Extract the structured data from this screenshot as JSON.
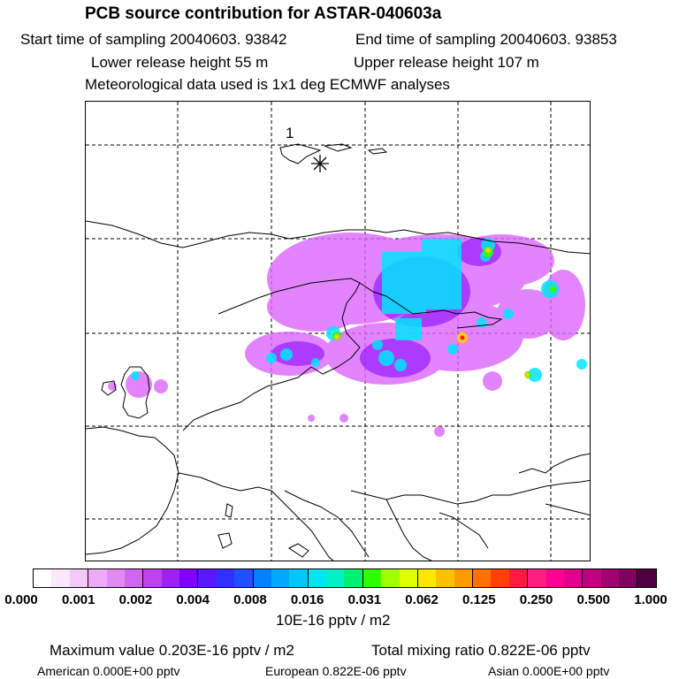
{
  "header": {
    "title": "PCB source contribution for ASTAR-040603a",
    "start_time": "Start time of sampling 20040603. 93842",
    "end_time": "End time of sampling 20040603. 93853",
    "lower_height": "Lower release height   55 m",
    "upper_height": "Upper release height  107 m",
    "meteo": "Meteorological data used is 1x1 deg ECMWF analyses"
  },
  "map": {
    "marker_label": "1",
    "marker_icon": "asterisk-release-marker-icon",
    "colors": {
      "coast": "#000000",
      "grid": "#000000",
      "low": "#dd66ff",
      "mid": "#00e6ff",
      "high": "#ffcc00"
    }
  },
  "colorbar": {
    "colors": [
      "#ffffff",
      "#fce8fc",
      "#f4c8f8",
      "#eeaaf6",
      "#e28af4",
      "#d166f2",
      "#c040f0",
      "#a020f0",
      "#8000ff",
      "#5a18ff",
      "#3030ff",
      "#2050ff",
      "#0080ff",
      "#00a8ff",
      "#00c8ff",
      "#00e6f0",
      "#00f0c8",
      "#00f070",
      "#30ff00",
      "#a0ff00",
      "#e0ff00",
      "#ffe800",
      "#ffc000",
      "#ff9a00",
      "#ff7000",
      "#ff4000",
      "#ff1a40",
      "#ff2080",
      "#ff0090",
      "#e00090",
      "#c00080",
      "#a00070",
      "#800060",
      "#500040"
    ],
    "ticks": [
      "0.000",
      "0.001",
      "0.002",
      "0.004",
      "0.008",
      "0.016",
      "0.031",
      "0.062",
      "0.125",
      "0.250",
      "0.500",
      "1.000"
    ],
    "unit": "10E-16 pptv / m2"
  },
  "footer": {
    "max_value": "Maximum value  0.203E-16 pptv / m2",
    "total": "Total mixing ratio  0.822E-06 pptv",
    "american": "American  0.000E+00 pptv",
    "european": "European  0.822E-06 pptv",
    "asian": "Asian  0.000E+00 pptv"
  }
}
